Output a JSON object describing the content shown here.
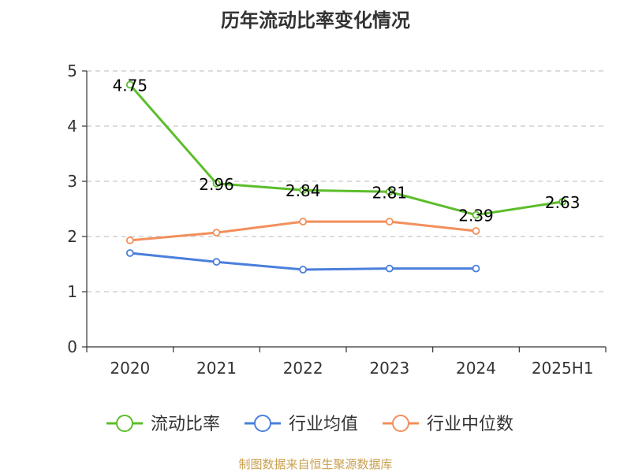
{
  "chart_title": "历年流动比率变化情况",
  "source": "制图数据来自恒生聚源数据库",
  "chart_data": {
    "type": "line",
    "title": "历年流动比率变化情况",
    "categories": [
      "2020",
      "2021",
      "2022",
      "2023",
      "2024",
      "2025H1"
    ],
    "y_ticks": [
      "0",
      "1",
      "2",
      "3",
      "4",
      "5"
    ],
    "ylim": [
      0,
      5
    ],
    "grid": "horizontal dashed",
    "legend_position": "bottom",
    "series": [
      {
        "name": "流动比率",
        "color": "#5cbd2b",
        "values": [
          4.75,
          2.96,
          2.84,
          2.81,
          2.39,
          2.63
        ],
        "labels": [
          "4.75",
          "2.96",
          "2.84",
          "2.81",
          "2.39",
          "2.63"
        ]
      },
      {
        "name": "行业均值",
        "color": "#4a7fdc",
        "values": [
          1.7,
          1.54,
          1.4,
          1.42,
          1.42,
          null
        ]
      },
      {
        "name": "行业中位数",
        "color": "#f28f5c",
        "values": [
          1.93,
          2.07,
          2.27,
          2.27,
          2.1,
          null
        ]
      }
    ]
  }
}
